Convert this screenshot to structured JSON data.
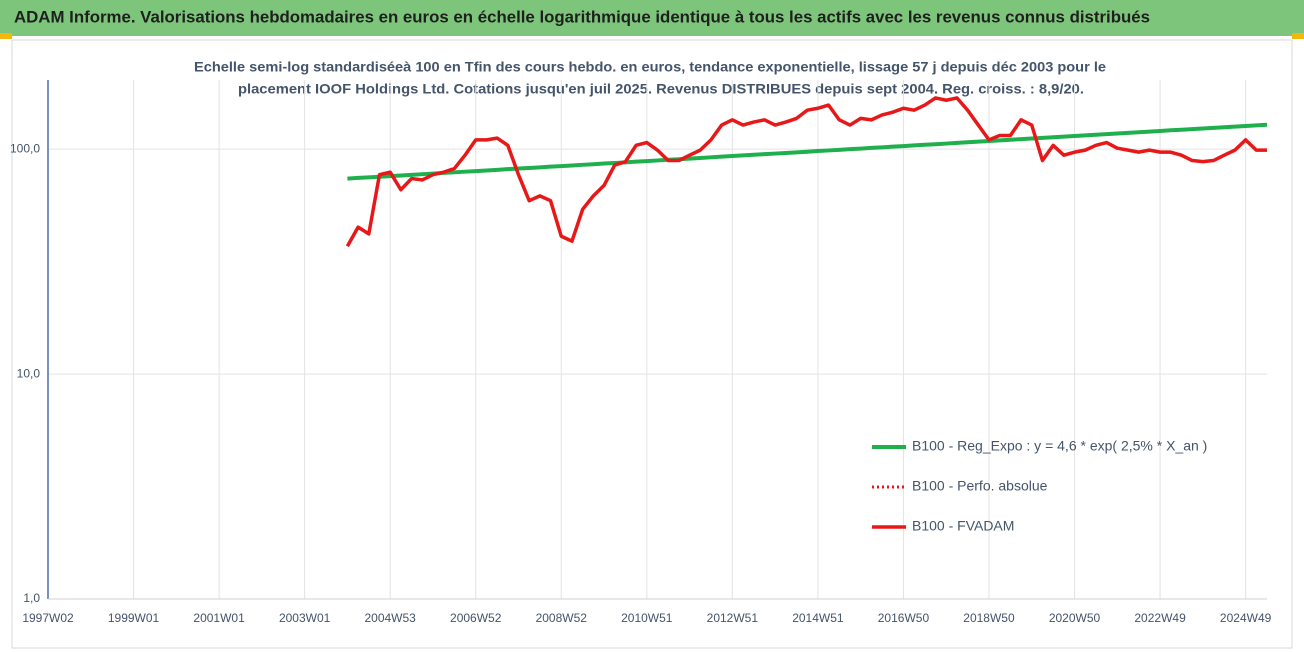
{
  "chart_data": {
    "type": "line",
    "title": "ADAM Informe. Valorisations hebdomadaires en euros en échelle logarithmique identique à tous les actifs avec les revenus connus distribués",
    "subtitle": [
      "Echelle semi-log standardiséeà 100 en Tfin des cours hebdo. en euros, tendance exponentielle, lissage 57 j depuis déc 2003 pour le",
      "placement IOOF Holdings Ltd. Cotations jusqu'en juil 2025. Revenus DISTRIBUES depuis sept 2004. Reg. croiss. : 8,9/20."
    ],
    "categories": [
      "1997W02",
      null,
      null,
      null,
      null,
      null,
      null,
      null,
      "1999W01",
      null,
      null,
      null,
      null,
      null,
      null,
      null,
      "2001W01",
      null,
      null,
      null,
      null,
      null,
      null,
      null,
      "2003W01",
      null,
      null,
      null,
      null,
      null,
      null,
      null,
      "2004W53",
      null,
      null,
      null,
      null,
      null,
      null,
      null,
      "2006W52",
      null,
      null,
      null,
      null,
      null,
      null,
      null,
      "2008W52",
      null,
      null,
      null,
      null,
      null,
      null,
      null,
      "2010W51",
      null,
      null,
      null,
      null,
      null,
      null,
      null,
      "2012W51",
      null,
      null,
      null,
      null,
      null,
      null,
      null,
      "2014W51",
      null,
      null,
      null,
      null,
      null,
      null,
      null,
      "2016W50",
      null,
      null,
      null,
      null,
      null,
      null,
      null,
      "2018W50",
      null,
      null,
      null,
      null,
      null,
      null,
      null,
      "2020W50",
      null,
      null,
      null,
      null,
      null,
      null,
      null,
      "2022W49",
      null,
      null,
      null,
      null,
      null,
      null,
      null,
      "2024W49",
      null,
      null
    ],
    "series": [
      {
        "name": "B100 - Reg_Expo : y = 4,6 * exp( 2,5% *  X_an )",
        "color": "#1fb04d",
        "line_style": "solid",
        "width": 4,
        "values": [
          null,
          null,
          null,
          null,
          null,
          null,
          null,
          null,
          null,
          null,
          null,
          null,
          null,
          null,
          null,
          null,
          null,
          null,
          null,
          null,
          null,
          null,
          null,
          null,
          null,
          null,
          null,
          null,
          74.0,
          74.5,
          74.9,
          75.4,
          75.9,
          76.4,
          76.9,
          77.4,
          77.9,
          78.4,
          78.9,
          79.4,
          79.9,
          80.4,
          80.9,
          81.5,
          82.0,
          82.5,
          83.0,
          83.6,
          84.1,
          84.6,
          85.2,
          85.7,
          86.3,
          86.8,
          87.4,
          88.0,
          88.5,
          89.1,
          89.7,
          90.2,
          90.8,
          91.4,
          92.0,
          92.6,
          93.2,
          93.8,
          94.4,
          95.0,
          95.6,
          96.2,
          96.8,
          97.4,
          98.1,
          98.7,
          99.3,
          100.0,
          100.6,
          101.3,
          101.9,
          102.6,
          103.2,
          103.9,
          104.6,
          105.2,
          105.9,
          106.6,
          107.3,
          108.0,
          108.7,
          109.4,
          110.1,
          110.8,
          111.5,
          112.2,
          113.0,
          113.7,
          114.4,
          115.2,
          115.9,
          116.7,
          117.4,
          118.2,
          118.9,
          119.7,
          120.5,
          121.3,
          122.0,
          122.8,
          123.6,
          124.4,
          125.2,
          126.0,
          126.8,
          127.6,
          128.4
        ]
      },
      {
        "name": "B100 - Perfo. absolue",
        "color": "#e81818",
        "line_style": "dotted",
        "width": 3,
        "values": [
          null,
          null,
          null,
          null,
          null,
          null,
          null,
          null,
          null,
          null,
          null,
          null,
          null,
          null,
          null,
          null,
          null,
          null,
          null,
          null,
          null,
          null,
          null,
          null,
          null,
          null,
          null,
          null,
          null,
          null,
          null,
          null,
          null,
          null,
          null,
          null,
          null,
          null,
          null,
          null,
          null,
          null,
          null,
          null,
          null,
          null,
          null,
          null,
          null,
          null,
          null,
          null,
          null,
          null,
          null,
          null,
          null,
          null,
          null,
          null,
          null,
          null,
          null,
          null,
          null,
          null,
          null,
          null,
          null,
          null,
          null,
          null,
          null,
          null,
          null,
          null,
          null,
          null,
          null,
          null,
          null,
          null,
          null,
          null,
          null,
          null,
          null,
          null,
          null,
          null,
          null,
          null,
          null,
          null,
          null,
          null,
          null,
          null,
          null,
          null,
          null,
          null,
          null,
          null,
          null,
          null,
          null,
          null,
          null,
          null,
          null,
          null,
          null,
          null,
          null
        ]
      },
      {
        "name": "B100 - FVADAM",
        "color": "#e81818",
        "line_style": "solid",
        "width": 3.5,
        "values": [
          null,
          null,
          null,
          null,
          null,
          null,
          null,
          null,
          null,
          null,
          null,
          null,
          null,
          null,
          null,
          null,
          null,
          null,
          null,
          null,
          null,
          null,
          null,
          null,
          null,
          null,
          null,
          null,
          37,
          45,
          42,
          77,
          79,
          66,
          74,
          73,
          77,
          79,
          82,
          94,
          110,
          110,
          112,
          104,
          77,
          59,
          62,
          59,
          41,
          39,
          54,
          62,
          69,
          85,
          88,
          104,
          107,
          99,
          89,
          89,
          94,
          99,
          110,
          128,
          135,
          128,
          132,
          135,
          128,
          132,
          137,
          149,
          152,
          157,
          135,
          128,
          137,
          135,
          142,
          146,
          152,
          149,
          157,
          169,
          165,
          169,
          149,
          128,
          110,
          115,
          115,
          135,
          128,
          89,
          104,
          94,
          97,
          99,
          104,
          107,
          101,
          99,
          97,
          99,
          97,
          97,
          94,
          89,
          88,
          89,
          94,
          99,
          110,
          99,
          99
        ]
      }
    ],
    "log_scale": true,
    "ylim": [
      1,
      203
    ],
    "yticks": [
      {
        "value": 1,
        "label": "1,0"
      },
      {
        "value": 10,
        "label": "10,0"
      },
      {
        "value": 100,
        "label": "100,0"
      }
    ],
    "grid": true,
    "legend": "lower right"
  }
}
